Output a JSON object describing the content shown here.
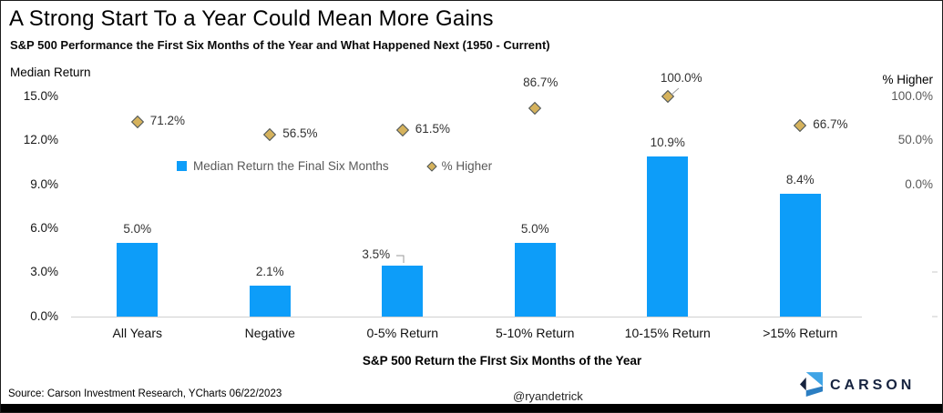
{
  "header": {
    "title": "A Strong Start To a Year Could Mean More Gains",
    "subtitle": "S&P 500 Performance the First Six Months of the Year and What Happened Next (1950 - Current)"
  },
  "chart_data": {
    "type": "bar",
    "categories": [
      "All Years",
      "Negative",
      "0-5% Return",
      "5-10% Return",
      "10-15% Return",
      ">15% Return"
    ],
    "series": [
      {
        "name": "Median Return the Final Six Months",
        "type": "bar",
        "axis": "left",
        "values": [
          5.0,
          2.1,
          3.5,
          5.0,
          10.9,
          8.4
        ],
        "labels": [
          "5.0%",
          "2.1%",
          "3.5%",
          "5.0%",
          "10.9%",
          "8.4%"
        ],
        "color": "#0D9DF9"
      },
      {
        "name": "% Higher",
        "type": "scatter",
        "marker": "diamond",
        "axis": "right",
        "values": [
          71.2,
          56.5,
          61.5,
          86.7,
          100.0,
          66.7
        ],
        "labels": [
          "71.2%",
          "56.5%",
          "61.5%",
          "86.7%",
          "100.0%",
          "66.7%"
        ],
        "fill": "#D5B25C",
        "stroke": "#4A555F"
      }
    ],
    "left_axis": {
      "title": "Median Return",
      "ticks": [
        "15.0%",
        "12.0%",
        "9.0%",
        "6.0%",
        "3.0%",
        "0.0%"
      ],
      "range_pct": [
        0,
        15
      ]
    },
    "right_axis": {
      "title": "% Higher",
      "ticks": [
        "100.0%",
        "50.0%",
        "0.0%"
      ],
      "range_pct_visible": [
        0,
        100
      ]
    },
    "xlabel": "S&P 500 Return the FIrst Six Months of the Year",
    "legend_position": "inside-top",
    "grid": false
  },
  "footer": {
    "source": "Source: Carson Investment Research, YCharts 06/22/2023",
    "handle": "@ryandetrick",
    "logo_text": "CARSON"
  },
  "colors": {
    "bar_blue": "#0D9DF9",
    "diamond_gold": "#D5B25C",
    "diamond_border": "#4A555F",
    "logo_navy": "#16233F",
    "logo_blue_light": "#3FA4E6",
    "logo_blue_mid": "#2B7EC2",
    "axis_line_gray": "#D0D0D0"
  }
}
